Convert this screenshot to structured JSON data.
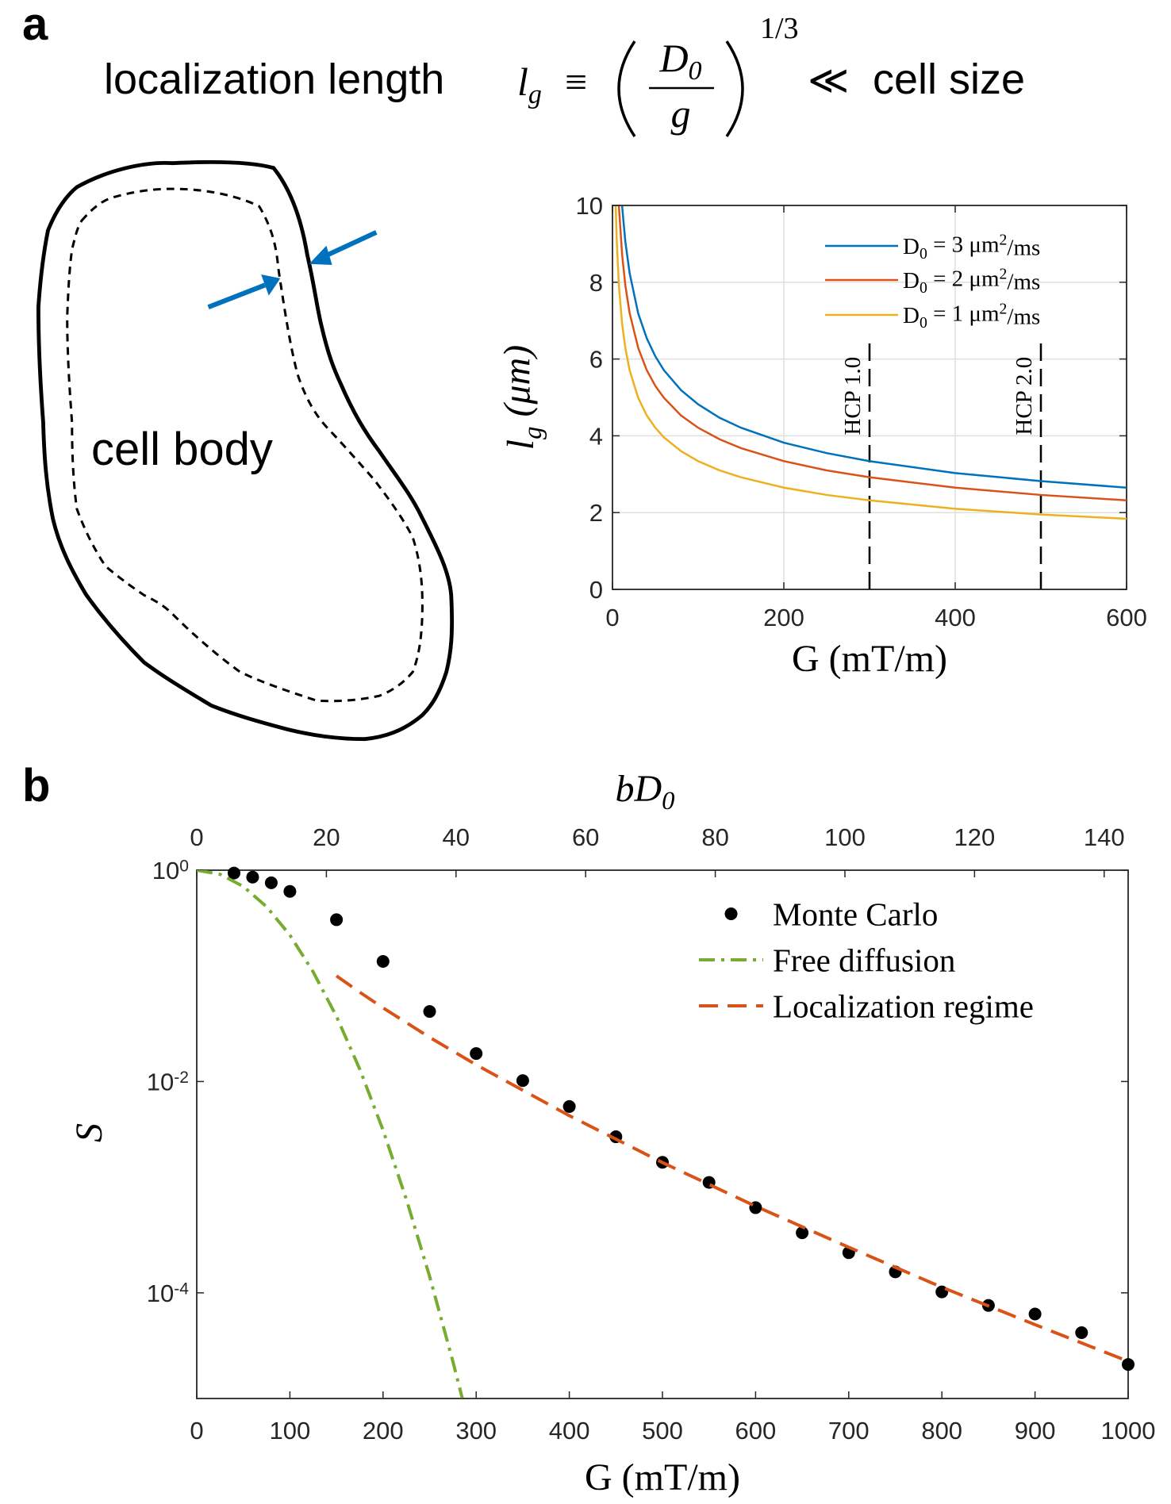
{
  "panel_labels": [
    "a",
    "b"
  ],
  "header": {
    "label_left": "localization length",
    "lhs": "l_g",
    "equiv": "≡",
    "numerator": "D_0",
    "denominator": "g",
    "exponent": "1/3",
    "relation": "≪",
    "label_right": "cell size"
  },
  "drawing": {
    "label": "cell body"
  },
  "chart_data": [
    {
      "type": "line",
      "xlabel": "G (mT/m)",
      "ylabel": "l_g (μm)",
      "xlim": [
        0,
        600
      ],
      "ylim": [
        0,
        10
      ],
      "xticks": [
        0,
        200,
        400,
        600
      ],
      "yticks": [
        0,
        2,
        4,
        6,
        8,
        10
      ],
      "grid": true,
      "legend": "upper right",
      "series": [
        {
          "name": "D_0 = 3 μm^2/ms",
          "color": "#0072bd",
          "x": [
            11.25,
            15,
            20,
            30,
            40,
            50,
            60,
            80,
            100,
            125,
            150,
            200,
            250,
            300,
            400,
            500,
            600
          ],
          "values": [
            9.98,
            9.06,
            8.24,
            7.19,
            6.54,
            6.07,
            5.71,
            5.19,
            4.82,
            4.47,
            4.21,
            3.82,
            3.55,
            3.34,
            3.03,
            2.82,
            2.65
          ]
        },
        {
          "name": "D_0 = 2 μm^2/ms",
          "color": "#d95319",
          "x": [
            7.5,
            11.25,
            15,
            20,
            30,
            40,
            50,
            60,
            80,
            100,
            125,
            150,
            200,
            250,
            300,
            400,
            500,
            600
          ],
          "values": [
            9.98,
            8.72,
            7.92,
            7.2,
            6.29,
            5.71,
            5.3,
            4.99,
            4.53,
            4.21,
            3.91,
            3.68,
            3.34,
            3.1,
            2.92,
            2.65,
            2.46,
            2.32
          ]
        },
        {
          "name": "D_0 = 1 μm^2/ms",
          "color": "#edb120",
          "x": [
            3.75,
            5,
            7.5,
            11.25,
            15,
            20,
            30,
            40,
            50,
            60,
            80,
            100,
            125,
            150,
            200,
            250,
            300,
            400,
            500,
            600
          ],
          "values": [
            9.98,
            9.07,
            7.92,
            6.92,
            6.29,
            5.71,
            4.99,
            4.53,
            4.21,
            3.96,
            3.6,
            3.34,
            3.1,
            2.92,
            2.65,
            2.46,
            2.32,
            2.1,
            1.95,
            1.84
          ]
        }
      ],
      "annotations": [
        {
          "x": 300,
          "y": [
            0,
            6.5
          ],
          "label": "HCP 1.0"
        },
        {
          "x": 500,
          "y": [
            0,
            6.5
          ],
          "label": "HCP 2.0"
        }
      ]
    },
    {
      "type": "line",
      "xlabel": "G (mT/m)",
      "ylabel": "S",
      "x2label": "bD_0",
      "xlim": [
        0,
        1000
      ],
      "xticks": [
        0,
        100,
        200,
        300,
        400,
        500,
        600,
        700,
        800,
        900,
        1000
      ],
      "x2lim": [
        0,
        143.7
      ],
      "x2ticks": [
        0,
        20,
        40,
        60,
        80,
        100,
        120,
        140
      ],
      "ylog": true,
      "ylim": [
        1e-05,
        1
      ],
      "yticks": [
        {
          "value": 1,
          "label": "10^0"
        },
        {
          "value": 0.01,
          "label": "10^-2"
        },
        {
          "value": 0.0001,
          "label": "10^-4"
        }
      ],
      "grid": false,
      "legend": "upper right",
      "series": [
        {
          "name": "Monte Carlo",
          "color": "#000000",
          "style": "markers",
          "x": [
            40,
            60,
            80,
            100,
            150,
            200,
            250,
            300,
            350,
            400,
            450,
            500,
            550,
            600,
            650,
            700,
            750,
            800,
            850,
            900,
            950,
            1000
          ],
          "values": [
            0.94,
            0.86,
            0.76,
            0.63,
            0.34,
            0.137,
            0.046,
            0.0184,
            0.0102,
            0.0058,
            0.003,
            0.00172,
            0.00111,
            0.00064,
            0.00037,
            0.00024,
            0.000158,
            0.000102,
            7.6e-05,
            6.3e-05,
            4.2e-05,
            2.1e-05
          ]
        },
        {
          "name": "Free diffusion",
          "color": "#77ac30",
          "style": "dashdot",
          "x": [
            0,
            25,
            50,
            75,
            100,
            125,
            150,
            175,
            200,
            225,
            250,
            275,
            285
          ],
          "values": [
            1,
            0.915,
            0.702,
            0.451,
            0.243,
            0.109,
            0.0413,
            0.0131,
            0.00347,
            0.00077,
            0.000143,
            2.24e-05,
            1.01e-05
          ]
        },
        {
          "name": "Localization regime",
          "color": "#d95319",
          "style": "dashed",
          "x": [
            150,
            175,
            200,
            250,
            300,
            400,
            500,
            600,
            700,
            800,
            900,
            1000
          ],
          "values": [
            0.1,
            0.07,
            0.0498,
            0.0262,
            0.0144,
            0.00475,
            0.00171,
            0.00066,
            0.00027,
            0.000113,
            5e-05,
            2.25e-05
          ]
        }
      ]
    }
  ]
}
